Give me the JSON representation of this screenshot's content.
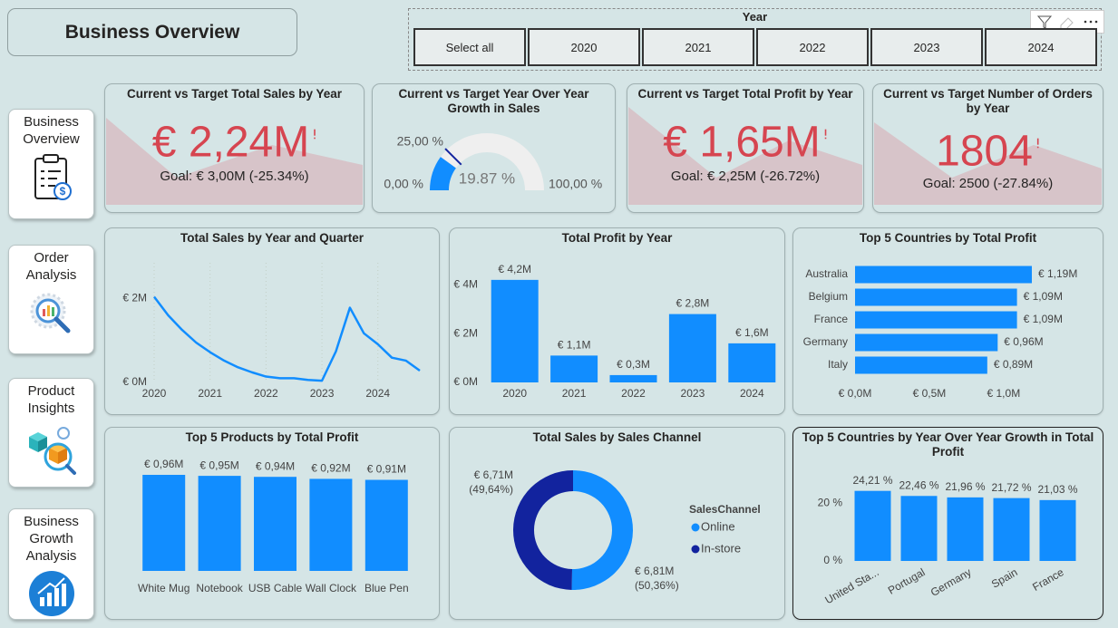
{
  "header": {
    "title": "Business Overview"
  },
  "slicer": {
    "title": "Year",
    "options": [
      "Select all",
      "2020",
      "2021",
      "2022",
      "2023",
      "2024"
    ]
  },
  "nav": [
    {
      "label": "Business Overview"
    },
    {
      "label": "Order Analysis"
    },
    {
      "label": "Product Insights"
    },
    {
      "label": "Business Growth Analysis"
    }
  ],
  "kpis": [
    {
      "title": "Current vs Target Total Sales by Year",
      "value": "€ 2,24M",
      "goal": "Goal: € 3,00M (-25.34%)"
    },
    {
      "title": "Current vs Target Total Profit by Year",
      "value": "€ 1,65M",
      "goal": "Goal: € 2,25M (-26.72%)"
    },
    {
      "title": "Current vs Target Number of Orders by Year",
      "value": "1804",
      "goal": "Goal: 2500 (-27.84%)"
    }
  ],
  "chart_data": [
    {
      "type": "gauge",
      "title": "Current vs Target Year Over Year Growth in Sales",
      "value": 19.87,
      "value_label": "19.87 %",
      "min": {
        "value": 0,
        "label": "0,00 %"
      },
      "max": {
        "value": 100,
        "label": "100,00 %"
      },
      "target": {
        "value": 25,
        "label": "25,00 %"
      },
      "color": "#118dff",
      "target_color": "#12239e"
    },
    {
      "type": "line",
      "title": "Total Sales by Year and Quarter",
      "categories": [
        "2020",
        null,
        null,
        null,
        "2021",
        null,
        null,
        null,
        "2022",
        null,
        null,
        null,
        "2023",
        null,
        null,
        null,
        "2024",
        null,
        null,
        null
      ],
      "values": [
        2.04,
        1.6,
        1.25,
        0.95,
        0.72,
        0.52,
        0.36,
        0.24,
        0.14,
        0.1,
        0.1,
        0.06,
        0.04,
        0.74,
        1.78,
        1.17,
        0.91,
        0.59,
        0.52,
        0.28
      ],
      "color": "#118dff",
      "ylim": [
        0,
        2.85
      ],
      "yticks": [
        {
          "value": 0,
          "label": "€ 0M"
        },
        {
          "value": 2,
          "label": "€ 2M"
        }
      ],
      "grid": true
    },
    {
      "type": "bar",
      "title": "Total Profit by Year",
      "categories": [
        "2020",
        "2021",
        "2022",
        "2023",
        "2024"
      ],
      "values": [
        4.2,
        1.1,
        0.3,
        2.8,
        1.6
      ],
      "value_labels": [
        "€ 4,2M",
        "€ 1,1M",
        "€ 0,3M",
        "€ 2,8M",
        "€ 1,6M"
      ],
      "color": "#118dff",
      "ylim": [
        0,
        4.9
      ],
      "yticks": [
        {
          "value": 0,
          "label": "€ 0M"
        },
        {
          "value": 2,
          "label": "€ 2M"
        },
        {
          "value": 4,
          "label": "€ 4M"
        }
      ]
    },
    {
      "type": "hbar",
      "title": "Top 5 Countries by Total Profit",
      "categories": [
        "Australia",
        "Belgium",
        "France",
        "Germany",
        "Italy"
      ],
      "values": [
        1.19,
        1.09,
        1.09,
        0.96,
        0.89
      ],
      "value_labels": [
        "€ 1,19M",
        "€ 1,09M",
        "€ 1,09M",
        "€ 0,96M",
        "€ 0,89M"
      ],
      "color": "#118dff",
      "xlim": [
        0,
        1.3
      ],
      "xticks": [
        {
          "value": 0,
          "label": "€ 0,0M"
        },
        {
          "value": 0.5,
          "label": "€ 0,5M"
        },
        {
          "value": 1,
          "label": "€ 1,0M"
        }
      ]
    },
    {
      "type": "bar",
      "title": "Top 5 Products by Total Profit",
      "categories": [
        "White Mug",
        "Notebook",
        "USB Cable",
        "Wall Clock",
        "Blue Pen"
      ],
      "values": [
        0.96,
        0.95,
        0.94,
        0.92,
        0.91
      ],
      "value_labels": [
        "€ 0,96M",
        "€ 0,95M",
        "€ 0,94M",
        "€ 0,92M",
        "€ 0,91M"
      ],
      "color": "#118dff"
    },
    {
      "type": "donut",
      "title": "Total Sales by Sales Channel",
      "legend_title": "SalesChannel",
      "categories": [
        "Online",
        "In-store"
      ],
      "values": [
        6.81,
        6.71
      ],
      "value_labels": [
        "€ 6,81M",
        "€ 6,71M"
      ],
      "shares": [
        50.36,
        49.64
      ],
      "share_labels": [
        "(50,36%)",
        "(49,64%)"
      ],
      "colors": [
        "#118dff",
        "#12239e"
      ]
    },
    {
      "type": "bar",
      "title": "Top 5 Countries by Year Over Year Growth in Total Profit",
      "categories": [
        "United Sta...",
        "Portugal",
        "Germany",
        "Spain",
        "France"
      ],
      "values": [
        24.21,
        22.46,
        21.96,
        21.72,
        21.03
      ],
      "value_labels": [
        "24,21 %",
        "22,46 %",
        "21,96 %",
        "21,72 %",
        "21,03 %"
      ],
      "color": "#118dff",
      "ylim": [
        0,
        31
      ],
      "yticks": [
        {
          "value": 0,
          "label": "0 %"
        },
        {
          "value": 20,
          "label": "20 %"
        }
      ]
    }
  ]
}
